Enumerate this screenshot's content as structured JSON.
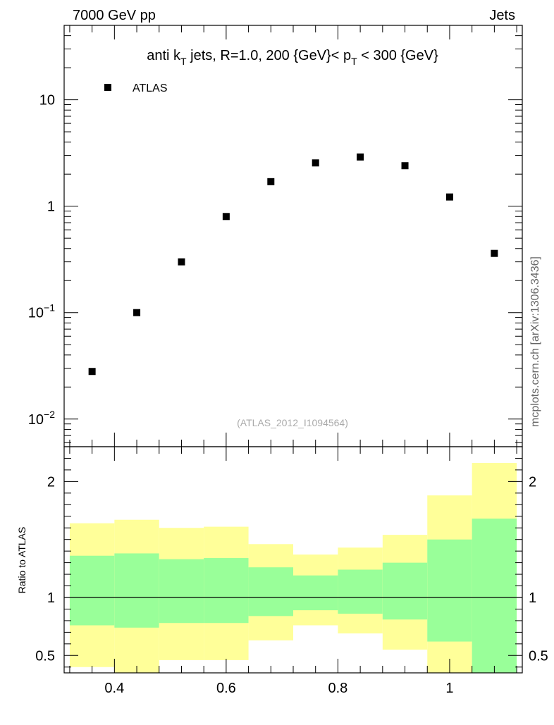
{
  "header": {
    "left_label": "7000 GeV pp",
    "right_label": "Jets"
  },
  "side_label": "mcplots.cern.ch [arXiv:1306.3436]",
  "chart_data": [
    {
      "type": "scatter",
      "panel": "main",
      "title_parts": {
        "prefix": "anti k",
        "sub1": "T",
        "mid": " jets, R=1.0,  200 {GeV}< p",
        "sub2": "T",
        "suffix": " < 300 {GeV}"
      },
      "yscale": "log",
      "ylim": [
        0.0055,
        50
      ],
      "xlim": [
        0.31,
        1.13
      ],
      "y_ticks": [
        {
          "value": 0.01,
          "base": "10",
          "exp": "−2"
        },
        {
          "value": 0.1,
          "base": "10",
          "exp": "−1"
        },
        {
          "value": 1,
          "label": "1"
        },
        {
          "value": 10,
          "label": "10"
        }
      ],
      "legend": {
        "label": "ATLAS",
        "position": "top-left"
      },
      "watermark": "(ATLAS_2012_I1094564)",
      "series": [
        {
          "name": "ATLAS",
          "marker": "square",
          "x": [
            0.36,
            0.44,
            0.52,
            0.6,
            0.68,
            0.76,
            0.84,
            0.92,
            1.0,
            1.08
          ],
          "y": [
            0.028,
            0.1,
            0.3,
            0.8,
            1.7,
            2.55,
            2.9,
            2.4,
            1.22,
            0.36
          ]
        }
      ]
    },
    {
      "type": "area",
      "panel": "ratio",
      "ylabel": "Ratio to ATLAS",
      "xlabel": "",
      "ylim": [
        0.35,
        2.3
      ],
      "xlim": [
        0.31,
        1.13
      ],
      "x_ticks": [
        0.4,
        0.6,
        0.8,
        1.0
      ],
      "x_tick_labels": [
        "0.4",
        "0.6",
        "0.8",
        "1"
      ],
      "y_ticks": [
        0.5,
        1,
        2
      ],
      "y_tick_labels": [
        "0.5",
        "1",
        "2"
      ],
      "reference_line": 1.0,
      "bins": {
        "edges": [
          0.32,
          0.4,
          0.48,
          0.56,
          0.64,
          0.72,
          0.8,
          0.88,
          0.96,
          1.04,
          1.12
        ],
        "yellow_low": [
          0.4,
          0.34,
          0.46,
          0.46,
          0.63,
          0.76,
          0.69,
          0.55,
          0.34,
          0.34
        ],
        "yellow_high": [
          1.64,
          1.67,
          1.6,
          1.61,
          1.46,
          1.37,
          1.43,
          1.54,
          1.88,
          2.16
        ],
        "green_low": [
          0.76,
          0.74,
          0.78,
          0.78,
          0.84,
          0.89,
          0.86,
          0.81,
          0.62,
          0.34
        ],
        "green_high": [
          1.36,
          1.38,
          1.33,
          1.34,
          1.26,
          1.19,
          1.24,
          1.3,
          1.5,
          1.68
        ],
        "colors": {
          "yellow": "#ffff99",
          "green": "#99ff99"
        }
      }
    }
  ]
}
